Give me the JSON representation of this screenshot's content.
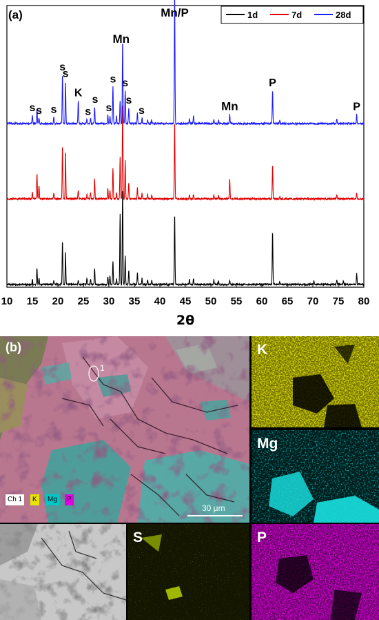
{
  "panel_a_label": "(a)",
  "panel_b_label": "(b)",
  "chart_data": {
    "type": "line",
    "xlabel": "2θ",
    "xlim": [
      10,
      80
    ],
    "x_ticks": [
      10,
      15,
      20,
      25,
      30,
      35,
      40,
      45,
      50,
      55,
      60,
      65,
      70,
      75,
      80
    ],
    "y_ticks_shown": false,
    "legend_position": "top-right",
    "series": [
      {
        "name": "1d",
        "color": "#000000",
        "offset": 0,
        "peaks": [
          [
            15.0,
            0.06
          ],
          [
            15.9,
            0.18
          ],
          [
            16.3,
            0.07
          ],
          [
            19.2,
            0.04
          ],
          [
            20.9,
            0.47
          ],
          [
            21.5,
            0.36
          ],
          [
            24.0,
            0.04
          ],
          [
            25.7,
            0.07
          ],
          [
            26.4,
            0.06
          ],
          [
            27.2,
            0.17
          ],
          [
            29.8,
            0.08
          ],
          [
            30.2,
            0.09
          ],
          [
            30.8,
            0.25
          ],
          [
            31.5,
            0.06
          ],
          [
            32.2,
            0.77
          ],
          [
            32.7,
            1.05
          ],
          [
            33.2,
            0.31
          ],
          [
            33.9,
            0.15
          ],
          [
            35.6,
            0.12
          ],
          [
            36.5,
            0.07
          ],
          [
            37.6,
            0.05
          ],
          [
            38.4,
            0.04
          ],
          [
            42.9,
            0.77
          ],
          [
            45.8,
            0.05
          ],
          [
            46.6,
            0.06
          ],
          [
            50.6,
            0.05
          ],
          [
            51.5,
            0.04
          ],
          [
            53.7,
            0.04
          ],
          [
            62.1,
            0.57
          ],
          [
            63.5,
            0.03
          ],
          [
            70.2,
            0.04
          ],
          [
            74.7,
            0.05
          ],
          [
            76.0,
            0.04
          ],
          [
            78.6,
            0.12
          ]
        ]
      },
      {
        "name": "7d",
        "color": "#e00000",
        "offset": 1,
        "peaks": [
          [
            15.0,
            0.07
          ],
          [
            15.9,
            0.27
          ],
          [
            16.3,
            0.14
          ],
          [
            19.2,
            0.07
          ],
          [
            20.9,
            0.58
          ],
          [
            21.5,
            0.51
          ],
          [
            24.0,
            0.1
          ],
          [
            25.7,
            0.05
          ],
          [
            26.4,
            0.07
          ],
          [
            27.2,
            0.22
          ],
          [
            29.8,
            0.12
          ],
          [
            30.2,
            0.09
          ],
          [
            30.8,
            0.34
          ],
          [
            31.5,
            0.07
          ],
          [
            32.2,
            0.45
          ],
          [
            32.7,
            1.05
          ],
          [
            33.2,
            0.42
          ],
          [
            33.9,
            0.17
          ],
          [
            35.6,
            0.12
          ],
          [
            36.5,
            0.06
          ],
          [
            37.6,
            0.05
          ],
          [
            38.4,
            0.04
          ],
          [
            42.9,
            0.84
          ],
          [
            45.8,
            0.05
          ],
          [
            46.6,
            0.05
          ],
          [
            50.6,
            0.04
          ],
          [
            51.5,
            0.04
          ],
          [
            53.7,
            0.22
          ],
          [
            62.1,
            0.37
          ],
          [
            63.5,
            0.03
          ],
          [
            74.7,
            0.04
          ],
          [
            78.6,
            0.06
          ]
        ]
      },
      {
        "name": "28d",
        "color": "#1a1aff",
        "offset": 2,
        "peaks": [
          [
            15.0,
            0.09
          ],
          [
            15.9,
            0.15
          ],
          [
            16.3,
            0.06
          ],
          [
            19.2,
            0.07
          ],
          [
            20.9,
            0.53
          ],
          [
            21.5,
            0.46
          ],
          [
            24.0,
            0.25
          ],
          [
            25.7,
            0.05
          ],
          [
            26.4,
            0.06
          ],
          [
            27.2,
            0.18
          ],
          [
            29.8,
            0.09
          ],
          [
            30.2,
            0.08
          ],
          [
            30.8,
            0.4
          ],
          [
            31.5,
            0.09
          ],
          [
            32.2,
            0.25
          ],
          [
            32.7,
            0.9
          ],
          [
            33.2,
            0.36
          ],
          [
            33.9,
            0.17
          ],
          [
            35.6,
            0.12
          ],
          [
            36.5,
            0.06
          ],
          [
            37.6,
            0.04
          ],
          [
            38.4,
            0.04
          ],
          [
            42.9,
            1.45
          ],
          [
            45.8,
            0.05
          ],
          [
            46.6,
            0.08
          ],
          [
            50.6,
            0.05
          ],
          [
            51.5,
            0.04
          ],
          [
            53.7,
            0.1
          ],
          [
            62.1,
            0.36
          ],
          [
            63.5,
            0.03
          ],
          [
            74.7,
            0.05
          ],
          [
            78.6,
            0.1
          ]
        ]
      }
    ],
    "annotations": [
      {
        "text": "s",
        "x": 15.0,
        "series": "28d"
      },
      {
        "text": "s",
        "x": 16.3,
        "series": "28d"
      },
      {
        "text": "s",
        "x": 19.2,
        "series": "28d"
      },
      {
        "text": "s",
        "x": 20.9,
        "series": "28d"
      },
      {
        "text": "s",
        "x": 21.5,
        "series": "28d"
      },
      {
        "text": "K",
        "x": 24.0,
        "series": "28d"
      },
      {
        "text": "s",
        "x": 25.9,
        "series": "28d"
      },
      {
        "text": "s",
        "x": 27.3,
        "series": "28d"
      },
      {
        "text": "s",
        "x": 30.0,
        "series": "28d"
      },
      {
        "text": "s",
        "x": 30.8,
        "series": "28d"
      },
      {
        "text": "Mn",
        "x": 32.4,
        "series": "28d"
      },
      {
        "text": "s",
        "x": 33.2,
        "series": "28d"
      },
      {
        "text": "s",
        "x": 33.9,
        "series": "28d"
      },
      {
        "text": "s",
        "x": 36.4,
        "series": "28d"
      },
      {
        "text": "Mn/P",
        "x": 42.9,
        "series": "28d"
      },
      {
        "text": "Mn",
        "x": 53.7,
        "series": "28d"
      },
      {
        "text": "P",
        "x": 62.1,
        "series": "28d"
      },
      {
        "text": "P",
        "x": 78.6,
        "series": "28d"
      }
    ]
  },
  "sem_image": {
    "legend_chips": [
      {
        "label": "Ch 1",
        "bg": "#ffffff",
        "fg": "#000000"
      },
      {
        "label": "K",
        "bg": "#e8e600",
        "fg": "#000000"
      },
      {
        "label": "Mg",
        "bg": "#00c8c8",
        "fg": "#000000"
      },
      {
        "label": "P",
        "bg": "#e000e0",
        "fg": "#000000"
      }
    ],
    "spot_label": "1",
    "scale_bar": "30 μm"
  },
  "element_maps": [
    {
      "label": "K",
      "color": "#e8e600"
    },
    {
      "label": "Mg",
      "color": "#00d8d8"
    },
    {
      "label": "S",
      "color": "#b8d800"
    },
    {
      "label": "P",
      "color": "#e000e0"
    }
  ]
}
